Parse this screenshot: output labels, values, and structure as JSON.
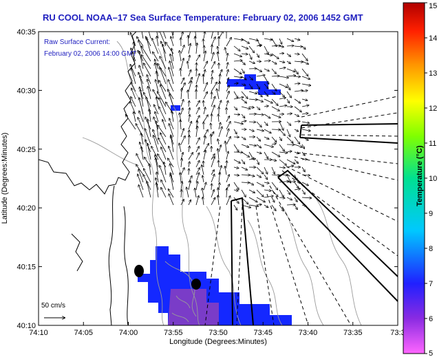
{
  "title": "RU COOL  NOAA–17  Sea Surface Temperature:  February 02, 2006 1452 GMT",
  "current_label": "Raw Surface Current:",
  "current_time": "February 02, 2006 14:00 GMT",
  "scale_label": "50 cm/s",
  "x_axis": {
    "label": "Longitude (Degrees:Minutes)",
    "ticks": [
      "74:10",
      "74:05",
      "74:00",
      "73:55",
      "73:50",
      "73:45",
      "73:40",
      "73:35",
      "73:3"
    ]
  },
  "y_axis": {
    "label": "Latitude (Degrees:Minutes)",
    "ticks": [
      "40:35",
      "40:30",
      "40:25",
      "40:20",
      "40:15",
      "40:10"
    ]
  },
  "colorbar": {
    "title": "Temperature (°C)",
    "ticks": [
      "15",
      "14",
      "13",
      "12",
      "11",
      "10",
      "9",
      "8",
      "7",
      "6",
      "5"
    ],
    "range": [
      5,
      15
    ]
  },
  "colors": {
    "title": "#1f1fbf",
    "land_fill": "#ffffff",
    "sst_blue": "#1428ff",
    "sst_purple": "#7a3cc8",
    "contour": "#9a9a9a",
    "coast": "#000000"
  }
}
